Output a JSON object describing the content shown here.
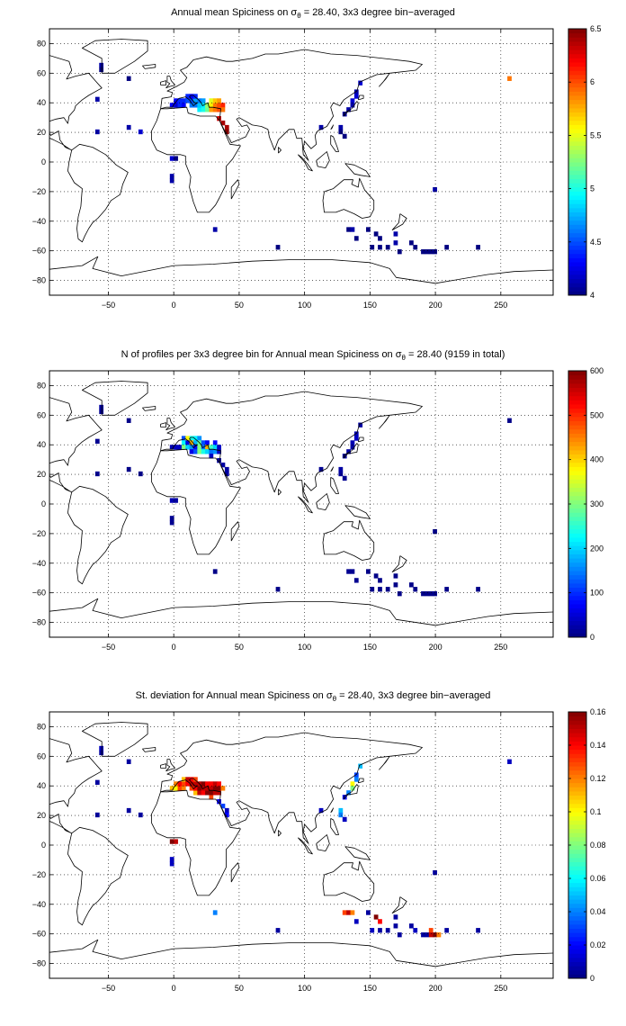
{
  "chart_data": [
    {
      "type": "heatmap",
      "title_prefix": "Annual mean Spiciness on ",
      "sigma_symbol": "σ",
      "sigma_sub": "θ",
      "title_suffix": " = 28.40, 3x3 degree bin−averaged",
      "xlim": [
        -95,
        290
      ],
      "ylim": [
        -90,
        90
      ],
      "xticks": [
        -50,
        0,
        50,
        100,
        150,
        200,
        250
      ],
      "yticks": [
        -80,
        -60,
        -40,
        -20,
        0,
        20,
        40,
        60,
        80
      ],
      "grid": true,
      "colorbar": {
        "min": 4,
        "max": 6.5,
        "ticks": [
          4,
          4.5,
          5,
          5.5,
          6,
          6.5
        ]
      },
      "bins": [
        [
          -57,
          64,
          4.1
        ],
        [
          -57,
          61,
          4.0
        ],
        [
          -36,
          55,
          4.0
        ],
        [
          -60,
          41,
          4.1
        ],
        [
          -60,
          19,
          4.1
        ],
        [
          -27,
          19,
          4.2
        ],
        [
          -36,
          22,
          4.1
        ],
        [
          -3,
          37,
          4.3
        ],
        [
          0,
          37,
          4.2
        ],
        [
          0,
          40,
          4.3
        ],
        [
          3,
          37,
          4.4
        ],
        [
          3,
          40,
          4.4
        ],
        [
          6,
          37,
          4.3
        ],
        [
          6,
          40,
          4.4
        ],
        [
          9,
          40,
          4.5
        ],
        [
          9,
          43,
          4.4
        ],
        [
          12,
          37,
          4.6
        ],
        [
          12,
          40,
          4.5
        ],
        [
          12,
          43,
          4.3
        ],
        [
          15,
          37,
          4.6
        ],
        [
          15,
          40,
          4.7
        ],
        [
          15,
          43,
          4.4
        ],
        [
          18,
          34,
          4.9
        ],
        [
          18,
          37,
          4.8
        ],
        [
          18,
          40,
          4.6
        ],
        [
          21,
          34,
          5.0
        ],
        [
          21,
          37,
          4.9
        ],
        [
          21,
          40,
          4.7
        ],
        [
          24,
          34,
          5.2
        ],
        [
          24,
          37,
          5.3
        ],
        [
          27,
          34,
          5.8
        ],
        [
          27,
          37,
          5.6
        ],
        [
          27,
          40,
          5.5
        ],
        [
          30,
          34,
          5.9
        ],
        [
          30,
          37,
          5.9
        ],
        [
          30,
          40,
          5.7
        ],
        [
          33,
          34,
          6.0
        ],
        [
          33,
          37,
          6.0
        ],
        [
          33,
          40,
          5.8
        ],
        [
          36,
          37,
          6.1
        ],
        [
          36,
          34,
          5.9
        ],
        [
          33,
          28,
          6.3
        ],
        [
          36,
          25,
          6.4
        ],
        [
          39,
          22,
          6.4
        ],
        [
          39,
          19,
          6.5
        ],
        [
          -3,
          1,
          4.2
        ],
        [
          0,
          1,
          4.0
        ],
        [
          -3,
          -11,
          4.1
        ],
        [
          -3,
          -14,
          4.1
        ],
        [
          30,
          -47,
          4.1
        ],
        [
          141,
          52,
          4.2
        ],
        [
          138,
          46,
          4.1
        ],
        [
          138,
          43,
          4.2
        ],
        [
          135,
          40,
          4.2
        ],
        [
          135,
          37,
          4.1
        ],
        [
          132,
          34,
          4.1
        ],
        [
          129,
          31,
          4.1
        ],
        [
          111,
          22,
          4.1
        ],
        [
          126,
          22,
          4.1
        ],
        [
          126,
          19,
          4.0
        ],
        [
          129,
          16,
          4.0
        ],
        [
          198,
          -20,
          4.1
        ],
        [
          132,
          -47,
          4.0
        ],
        [
          135,
          -47,
          4.1
        ],
        [
          147,
          -47,
          4.0
        ],
        [
          138,
          -53,
          4.0
        ],
        [
          153,
          -50,
          4.0
        ],
        [
          156,
          -53,
          4.0
        ],
        [
          168,
          -50,
          4.1
        ],
        [
          168,
          -56,
          4.1
        ],
        [
          180,
          -56,
          4.0
        ],
        [
          150,
          -59,
          4.0
        ],
        [
          156,
          -59,
          4.0
        ],
        [
          162,
          -59,
          4.0
        ],
        [
          183,
          -59,
          4.0
        ],
        [
          189,
          -62,
          4.0
        ],
        [
          192,
          -62,
          4.0
        ],
        [
          195,
          -62,
          4.0
        ],
        [
          198,
          -62,
          4.0
        ],
        [
          171,
          -62,
          4.0
        ],
        [
          207,
          -59,
          4.0
        ],
        [
          231,
          -59,
          4.0
        ],
        [
          78,
          -59,
          4.0
        ],
        [
          255,
          55,
          5.9
        ]
      ]
    },
    {
      "type": "heatmap",
      "title_prefix": "N of profiles per 3x3 degree bin for Annual mean Spiciness on ",
      "sigma_symbol": "σ",
      "sigma_sub": "θ",
      "title_suffix": " = 28.40 (9159 in total)",
      "xlim": [
        -95,
        290
      ],
      "ylim": [
        -90,
        90
      ],
      "xticks": [
        -50,
        0,
        50,
        100,
        150,
        200,
        250
      ],
      "yticks": [
        -80,
        -60,
        -40,
        -20,
        0,
        20,
        40,
        60,
        80
      ],
      "grid": true,
      "colorbar": {
        "min": 0,
        "max": 600,
        "ticks": [
          0,
          100,
          200,
          300,
          400,
          500,
          600
        ]
      },
      "bins": [
        [
          -57,
          64,
          20
        ],
        [
          -57,
          61,
          10
        ],
        [
          -36,
          55,
          5
        ],
        [
          -60,
          41,
          10
        ],
        [
          -60,
          19,
          10
        ],
        [
          -27,
          19,
          5
        ],
        [
          -36,
          22,
          5
        ],
        [
          6,
          43,
          120
        ],
        [
          9,
          43,
          380
        ],
        [
          12,
          43,
          240
        ],
        [
          15,
          43,
          220
        ],
        [
          18,
          43,
          160
        ],
        [
          6,
          40,
          220
        ],
        [
          9,
          40,
          60
        ],
        [
          12,
          40,
          420
        ],
        [
          15,
          40,
          180
        ],
        [
          18,
          40,
          280
        ],
        [
          21,
          40,
          120
        ],
        [
          24,
          40,
          70
        ],
        [
          30,
          40,
          80
        ],
        [
          3,
          37,
          40
        ],
        [
          6,
          37,
          300
        ],
        [
          9,
          37,
          200
        ],
        [
          12,
          37,
          160
        ],
        [
          15,
          37,
          80
        ],
        [
          18,
          37,
          300
        ],
        [
          21,
          37,
          140
        ],
        [
          24,
          37,
          420
        ],
        [
          27,
          37,
          260
        ],
        [
          30,
          37,
          200
        ],
        [
          33,
          37,
          40
        ],
        [
          0,
          37,
          40
        ],
        [
          -3,
          37,
          30
        ],
        [
          12,
          34,
          60
        ],
        [
          15,
          34,
          120
        ],
        [
          18,
          34,
          300
        ],
        [
          21,
          34,
          240
        ],
        [
          24,
          34,
          200
        ],
        [
          27,
          34,
          140
        ],
        [
          30,
          34,
          160
        ],
        [
          33,
          34,
          40
        ],
        [
          27,
          31,
          40
        ],
        [
          33,
          28,
          20
        ],
        [
          36,
          25,
          20
        ],
        [
          39,
          22,
          20
        ],
        [
          39,
          19,
          20
        ],
        [
          -3,
          1,
          30
        ],
        [
          0,
          1,
          20
        ],
        [
          -3,
          -11,
          10
        ],
        [
          -3,
          -14,
          10
        ],
        [
          30,
          -47,
          5
        ],
        [
          141,
          52,
          20
        ],
        [
          138,
          46,
          30
        ],
        [
          138,
          43,
          40
        ],
        [
          135,
          40,
          30
        ],
        [
          135,
          37,
          20
        ],
        [
          132,
          34,
          20
        ],
        [
          129,
          31,
          20
        ],
        [
          111,
          22,
          10
        ],
        [
          126,
          22,
          20
        ],
        [
          126,
          19,
          15
        ],
        [
          129,
          16,
          10
        ],
        [
          198,
          -20,
          5
        ],
        [
          132,
          -47,
          10
        ],
        [
          135,
          -47,
          10
        ],
        [
          147,
          -47,
          5
        ],
        [
          138,
          -53,
          10
        ],
        [
          153,
          -50,
          5
        ],
        [
          156,
          -53,
          5
        ],
        [
          168,
          -50,
          5
        ],
        [
          168,
          -56,
          5
        ],
        [
          180,
          -56,
          5
        ],
        [
          150,
          -59,
          5
        ],
        [
          156,
          -59,
          5
        ],
        [
          162,
          -59,
          5
        ],
        [
          183,
          -59,
          5
        ],
        [
          189,
          -62,
          5
        ],
        [
          192,
          -62,
          5
        ],
        [
          195,
          -62,
          5
        ],
        [
          198,
          -62,
          5
        ],
        [
          171,
          -62,
          5
        ],
        [
          207,
          -59,
          5
        ],
        [
          231,
          -59,
          5
        ],
        [
          78,
          -59,
          5
        ],
        [
          255,
          55,
          5
        ]
      ]
    },
    {
      "type": "heatmap",
      "title_prefix": "St. deviation for Annual mean Spiciness on ",
      "sigma_symbol": "σ",
      "sigma_sub": "θ",
      "title_suffix": " = 28.40, 3x3 degree bin−averaged",
      "xlim": [
        -95,
        290
      ],
      "ylim": [
        -90,
        90
      ],
      "xticks": [
        -50,
        0,
        50,
        100,
        150,
        200,
        250
      ],
      "yticks": [
        -80,
        -60,
        -40,
        -20,
        0,
        20,
        40,
        60,
        80
      ],
      "grid": true,
      "colorbar": {
        "min": 0,
        "max": 0.16,
        "ticks": [
          0,
          0.02,
          0.04,
          0.06,
          0.08,
          0.1,
          0.12,
          0.14,
          0.16
        ]
      },
      "bins": [
        [
          -57,
          64,
          0.01
        ],
        [
          -57,
          61,
          0.005
        ],
        [
          -36,
          55,
          0.005
        ],
        [
          -60,
          41,
          0.005
        ],
        [
          -60,
          19,
          0.005
        ],
        [
          -27,
          19,
          0.005
        ],
        [
          -36,
          22,
          0.005
        ],
        [
          -3,
          37,
          0.11
        ],
        [
          0,
          37,
          0.1
        ],
        [
          0,
          40,
          0.12
        ],
        [
          3,
          37,
          0.13
        ],
        [
          3,
          40,
          0.14
        ],
        [
          6,
          37,
          0.12
        ],
        [
          6,
          40,
          0.13
        ],
        [
          6,
          43,
          0.11
        ],
        [
          9,
          40,
          0.14
        ],
        [
          9,
          43,
          0.15
        ],
        [
          12,
          37,
          0.13
        ],
        [
          12,
          40,
          0.15
        ],
        [
          12,
          43,
          0.14
        ],
        [
          15,
          34,
          0.11
        ],
        [
          15,
          37,
          0.14
        ],
        [
          15,
          40,
          0.15
        ],
        [
          15,
          43,
          0.13
        ],
        [
          18,
          34,
          0.15
        ],
        [
          18,
          37,
          0.16
        ],
        [
          18,
          40,
          0.15
        ],
        [
          21,
          34,
          0.14
        ],
        [
          21,
          37,
          0.15
        ],
        [
          21,
          40,
          0.16
        ],
        [
          24,
          34,
          0.16
        ],
        [
          24,
          37,
          0.15
        ],
        [
          24,
          40,
          0.14
        ],
        [
          27,
          31,
          0.13
        ],
        [
          27,
          34,
          0.16
        ],
        [
          27,
          37,
          0.15
        ],
        [
          27,
          40,
          0.14
        ],
        [
          30,
          34,
          0.15
        ],
        [
          30,
          37,
          0.16
        ],
        [
          30,
          40,
          0.15
        ],
        [
          33,
          34,
          0.15
        ],
        [
          33,
          37,
          0.16
        ],
        [
          33,
          40,
          0.14
        ],
        [
          36,
          37,
          0.12
        ],
        [
          33,
          28,
          0.02
        ],
        [
          36,
          25,
          0.03
        ],
        [
          39,
          22,
          0.01
        ],
        [
          39,
          19,
          0.02
        ],
        [
          -3,
          1,
          0.16
        ],
        [
          0,
          1,
          0.15
        ],
        [
          -3,
          -11,
          0.01
        ],
        [
          -3,
          -14,
          0.01
        ],
        [
          30,
          -47,
          0.04
        ],
        [
          141,
          52,
          0.05
        ],
        [
          138,
          46,
          0.03
        ],
        [
          138,
          43,
          0.04
        ],
        [
          135,
          40,
          0.1
        ],
        [
          135,
          37,
          0.08
        ],
        [
          132,
          34,
          0.04
        ],
        [
          129,
          31,
          0.02
        ],
        [
          111,
          22,
          0.01
        ],
        [
          126,
          22,
          0.05
        ],
        [
          126,
          19,
          0.04
        ],
        [
          129,
          16,
          0.01
        ],
        [
          198,
          -20,
          0.005
        ],
        [
          129,
          -47,
          0.13
        ],
        [
          132,
          -47,
          0.15
        ],
        [
          135,
          -47,
          0.12
        ],
        [
          147,
          -47,
          0.005
        ],
        [
          138,
          -53,
          0.01
        ],
        [
          153,
          -50,
          0.16
        ],
        [
          156,
          -53,
          0.14
        ],
        [
          168,
          -50,
          0.005
        ],
        [
          168,
          -56,
          0.005
        ],
        [
          180,
          -56,
          0.005
        ],
        [
          150,
          -59,
          0.01
        ],
        [
          156,
          -59,
          0.005
        ],
        [
          162,
          -59,
          0.005
        ],
        [
          183,
          -59,
          0.01
        ],
        [
          189,
          -62,
          0.005
        ],
        [
          192,
          -62,
          0.005
        ],
        [
          195,
          -59,
          0.13
        ],
        [
          195,
          -62,
          0.15
        ],
        [
          198,
          -62,
          0.16
        ],
        [
          201,
          -62,
          0.12
        ],
        [
          171,
          -62,
          0.005
        ],
        [
          207,
          -59,
          0.005
        ],
        [
          231,
          -59,
          0.005
        ],
        [
          78,
          -59,
          0.005
        ],
        [
          255,
          55,
          0.01
        ]
      ]
    }
  ]
}
